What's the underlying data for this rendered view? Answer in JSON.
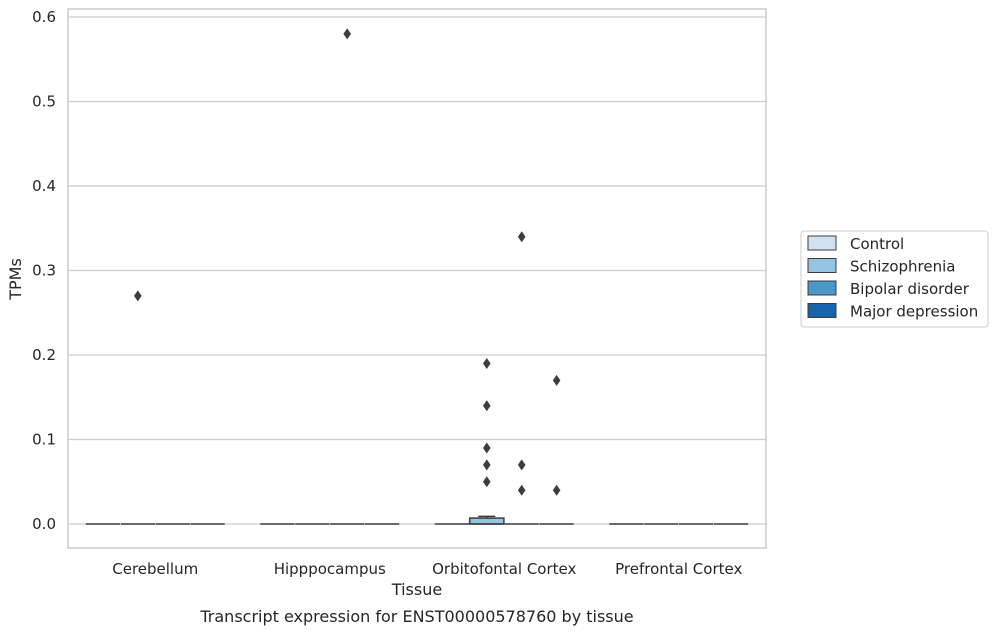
{
  "chart_data": {
    "type": "box",
    "xlabel": "Tissue",
    "ylabel": "TPMs",
    "caption": "Transcript expression for ENST00000578760 by tissue",
    "ylim": [
      -0.03,
      0.61
    ],
    "yticks": [
      "0.0",
      "0.1",
      "0.2",
      "0.3",
      "0.4",
      "0.5",
      "0.6"
    ],
    "categories": [
      "Cerebellum",
      "Hipppocampus",
      "Orbitofontal Cortex",
      "Prefrontal Cortex"
    ],
    "grid": "horizontal",
    "legend_placement": "right",
    "series": [
      {
        "name": "Control",
        "color": "#d0e1f2"
      },
      {
        "name": "Schizophrenia",
        "color": "#94c4df"
      },
      {
        "name": "Bipolar disorder",
        "color": "#4a98c9"
      },
      {
        "name": "Major depression",
        "color": "#1764ab"
      }
    ],
    "boxes": [
      {
        "category": 0,
        "series": 0,
        "q1": 0,
        "median": 0,
        "q3": 0
      },
      {
        "category": 0,
        "series": 1,
        "q1": 0,
        "median": 0,
        "q3": 0
      },
      {
        "category": 0,
        "series": 2,
        "q1": 0,
        "median": 0,
        "q3": 0
      },
      {
        "category": 0,
        "series": 3,
        "q1": 0,
        "median": 0,
        "q3": 0
      },
      {
        "category": 1,
        "series": 0,
        "q1": 0,
        "median": 0,
        "q3": 0
      },
      {
        "category": 1,
        "series": 1,
        "q1": 0,
        "median": 0,
        "q3": 0
      },
      {
        "category": 1,
        "series": 2,
        "q1": 0,
        "median": 0,
        "q3": 0
      },
      {
        "category": 1,
        "series": 3,
        "q1": 0,
        "median": 0,
        "q3": 0
      },
      {
        "category": 2,
        "series": 0,
        "q1": 0,
        "median": 0,
        "q3": 0
      },
      {
        "category": 2,
        "series": 1,
        "q1": 0,
        "median": 0,
        "q3": 0.007,
        "whisker_high": 0.009
      },
      {
        "category": 2,
        "series": 2,
        "q1": 0,
        "median": 0,
        "q3": 0
      },
      {
        "category": 2,
        "series": 3,
        "q1": 0,
        "median": 0,
        "q3": 0
      },
      {
        "category": 3,
        "series": 0,
        "q1": 0,
        "median": 0,
        "q3": 0
      },
      {
        "category": 3,
        "series": 1,
        "q1": 0,
        "median": 0,
        "q3": 0
      },
      {
        "category": 3,
        "series": 2,
        "q1": 0,
        "median": 0,
        "q3": 0
      },
      {
        "category": 3,
        "series": 3,
        "q1": 0,
        "median": 0,
        "q3": 0
      }
    ],
    "outliers": [
      {
        "category": 0,
        "series": 1,
        "value": 0.27
      },
      {
        "category": 1,
        "series": 2,
        "value": 0.58
      },
      {
        "category": 2,
        "series": 1,
        "value": 0.19
      },
      {
        "category": 2,
        "series": 1,
        "value": 0.14
      },
      {
        "category": 2,
        "series": 1,
        "value": 0.09
      },
      {
        "category": 2,
        "series": 1,
        "value": 0.07
      },
      {
        "category": 2,
        "series": 1,
        "value": 0.05
      },
      {
        "category": 2,
        "series": 2,
        "value": 0.34
      },
      {
        "category": 2,
        "series": 2,
        "value": 0.07
      },
      {
        "category": 2,
        "series": 2,
        "value": 0.04
      },
      {
        "category": 2,
        "series": 3,
        "value": 0.17
      },
      {
        "category": 2,
        "series": 3,
        "value": 0.04
      }
    ]
  }
}
